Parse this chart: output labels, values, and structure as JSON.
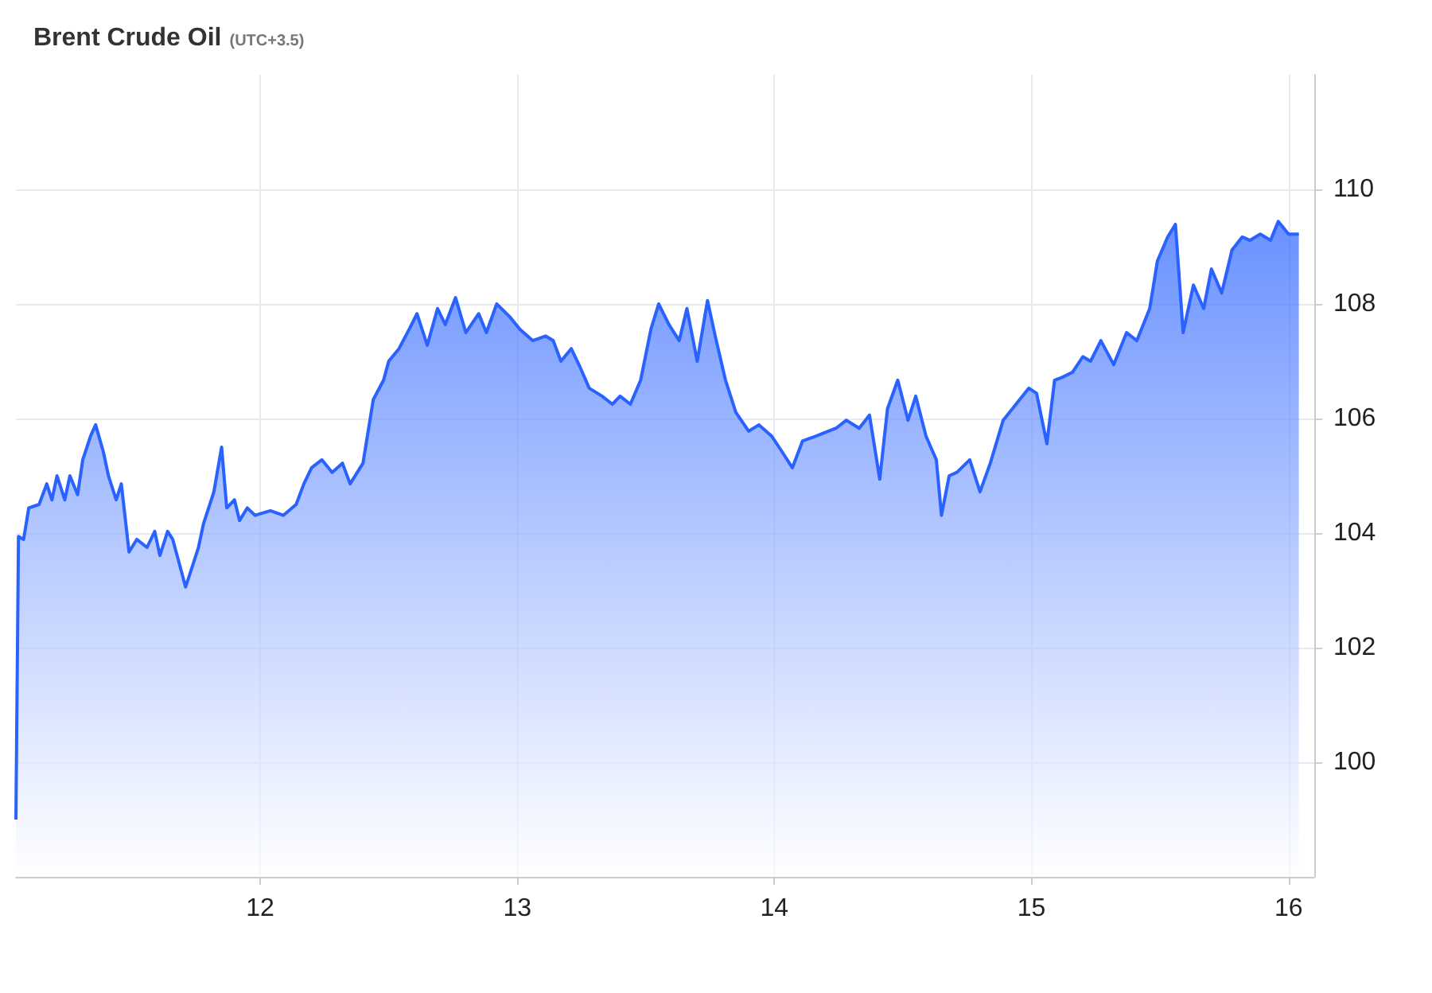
{
  "chart_data": {
    "type": "area",
    "title": "Brent Crude Oil",
    "subtitle": "(UTC+3.5)",
    "x": [
      11.05,
      11.06,
      11.08,
      11.1,
      11.14,
      11.17,
      11.19,
      11.21,
      11.24,
      11.26,
      11.29,
      11.31,
      11.34,
      11.36,
      11.39,
      11.41,
      11.44,
      11.46,
      11.49,
      11.52,
      11.56,
      11.59,
      11.61,
      11.64,
      11.66,
      11.68,
      11.71,
      11.73,
      11.76,
      11.78,
      11.82,
      11.85,
      11.87,
      11.9,
      11.92,
      11.95,
      11.98,
      12.04,
      12.09,
      12.14,
      12.17,
      12.2,
      12.24,
      12.28,
      12.32,
      12.35,
      12.4,
      12.44,
      12.48,
      12.5,
      12.54,
      12.58,
      12.61,
      12.65,
      12.69,
      12.72,
      12.76,
      12.8,
      12.85,
      12.88,
      12.92,
      12.97,
      13.01,
      13.06,
      13.11,
      13.14,
      13.17,
      13.21,
      13.24,
      13.28,
      13.33,
      13.37,
      13.4,
      13.44,
      13.48,
      13.52,
      13.55,
      13.59,
      13.63,
      13.66,
      13.7,
      13.74,
      13.77,
      13.81,
      13.85,
      13.9,
      13.94,
      13.99,
      14.03,
      14.07,
      14.11,
      14.16,
      14.21,
      14.24,
      14.28,
      14.33,
      14.37,
      14.41,
      14.44,
      14.48,
      14.52,
      14.55,
      14.59,
      14.63,
      14.65,
      14.68,
      14.71,
      14.76,
      14.8,
      14.84,
      14.89,
      14.94,
      14.99,
      15.02,
      15.06,
      15.09,
      15.12,
      15.16,
      15.2,
      15.23,
      15.27,
      15.32,
      15.37,
      15.41,
      15.46,
      15.49,
      15.53,
      15.56,
      15.59,
      15.63,
      15.67,
      15.7,
      15.74,
      15.78,
      15.82,
      15.85,
      15.89,
      15.93,
      15.96,
      16.0,
      16.04
    ],
    "series": [
      {
        "color": "#2962ff",
        "values": [
          99.0,
          103.94,
          103.89,
          104.44,
          104.5,
          104.86,
          104.58,
          105.0,
          104.58,
          105.0,
          104.67,
          105.28,
          105.69,
          105.89,
          105.42,
          105.0,
          104.58,
          104.86,
          103.67,
          103.89,
          103.75,
          104.03,
          103.61,
          104.03,
          103.89,
          103.56,
          103.06,
          103.33,
          103.75,
          104.17,
          104.72,
          105.5,
          104.44,
          104.58,
          104.22,
          104.44,
          104.31,
          104.39,
          104.31,
          104.5,
          104.86,
          105.14,
          105.28,
          105.06,
          105.22,
          104.86,
          105.22,
          106.33,
          106.67,
          107.0,
          107.22,
          107.56,
          107.83,
          107.28,
          107.92,
          107.64,
          108.11,
          107.5,
          107.83,
          107.5,
          108.0,
          107.78,
          107.56,
          107.36,
          107.44,
          107.36,
          107.0,
          107.22,
          106.94,
          106.53,
          106.39,
          106.25,
          106.39,
          106.25,
          106.67,
          107.56,
          108.0,
          107.64,
          107.36,
          107.92,
          107.0,
          108.06,
          107.44,
          106.67,
          106.11,
          105.78,
          105.89,
          105.69,
          105.42,
          105.14,
          105.61,
          105.69,
          105.78,
          105.83,
          105.97,
          105.83,
          106.06,
          104.94,
          106.17,
          106.67,
          105.97,
          106.39,
          105.69,
          105.28,
          104.31,
          105.0,
          105.06,
          105.28,
          104.72,
          105.22,
          105.97,
          106.25,
          106.53,
          106.44,
          105.56,
          106.67,
          106.72,
          106.81,
          107.08,
          107.0,
          107.36,
          106.94,
          107.5,
          107.36,
          107.92,
          108.75,
          109.17,
          109.39,
          107.5,
          108.33,
          107.92,
          108.61,
          108.19,
          108.94,
          109.17,
          109.11,
          109.22,
          109.11,
          109.44,
          109.22,
          109.22
        ]
      }
    ],
    "xlim": [
      11.05,
      16.1
    ],
    "xticks": [
      12,
      13,
      14,
      15,
      16
    ],
    "ylim": [
      98,
      112
    ],
    "yticks": [
      100,
      102,
      104,
      106,
      108,
      110
    ],
    "grid": true,
    "marker": "none",
    "line_style": "solid"
  }
}
